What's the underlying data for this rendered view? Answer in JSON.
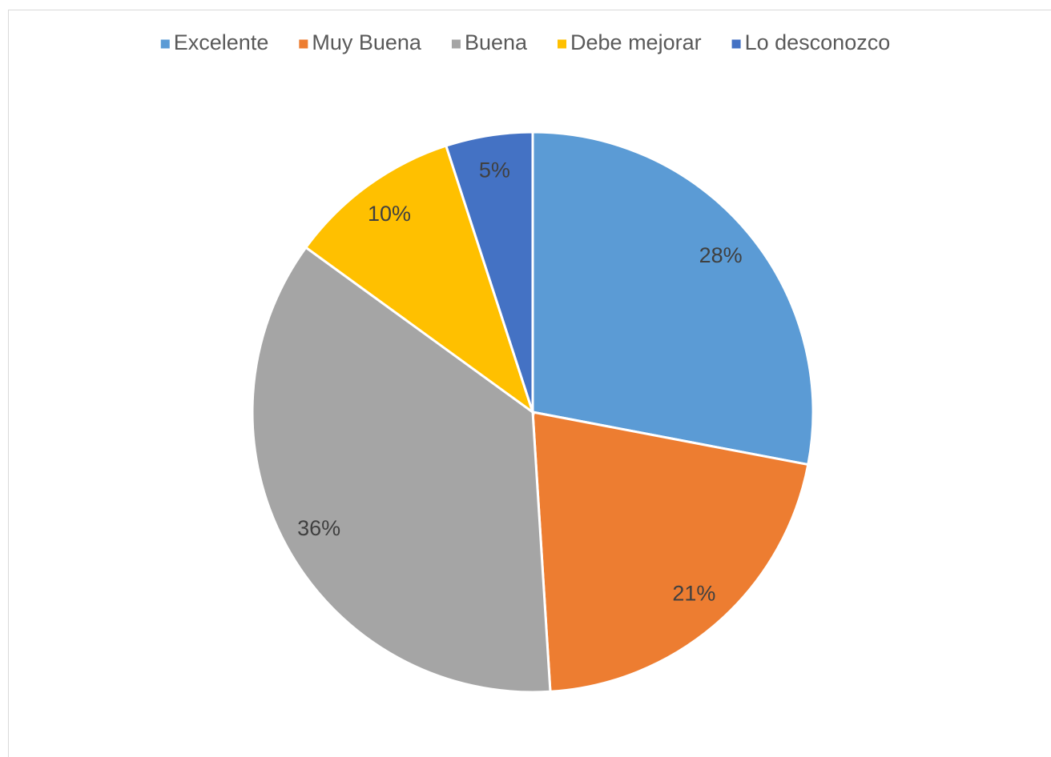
{
  "chart_data": {
    "type": "pie",
    "categories": [
      "Excelente",
      "Muy Buena",
      "Buena",
      "Debe mejorar",
      "Lo desconozco"
    ],
    "values": [
      28,
      21,
      36,
      10,
      5
    ],
    "value_labels": [
      "28%",
      "21%",
      "36%",
      "10%",
      "5%"
    ],
    "colors": [
      "#5b9bd5",
      "#ed7d31",
      "#a5a5a5",
      "#ffc000",
      "#4472c4"
    ],
    "legend": "top"
  }
}
